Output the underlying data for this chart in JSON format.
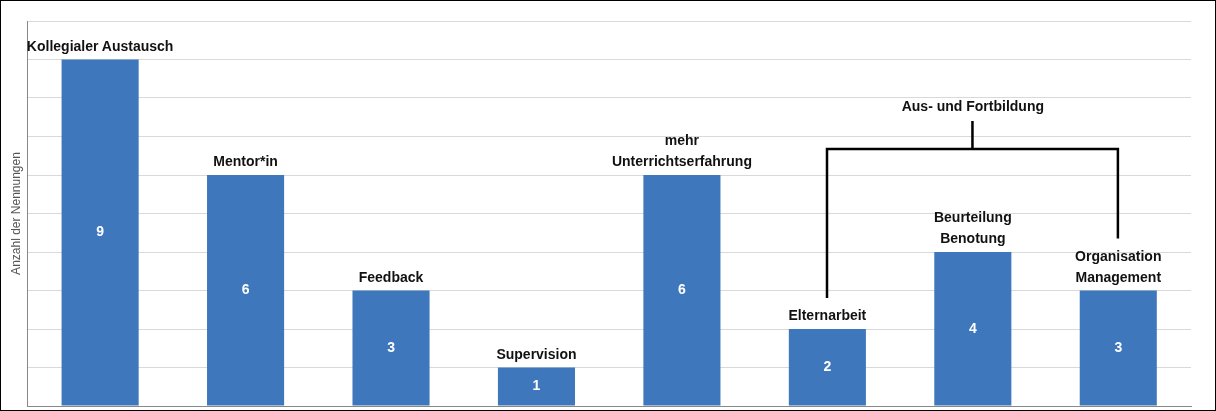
{
  "chart_data": {
    "type": "bar",
    "ylabel": "Anzahl der Nennungen",
    "categories": [
      "Kollegialer Austausch",
      "Mentor*in",
      "Feedback",
      "Supervision",
      "mehr\nUnterrichtserfahrung",
      "Elternarbeit",
      "Beurteilung\nBenotung",
      "Organisation\nManagement"
    ],
    "values": [
      9,
      6,
      3,
      1,
      6,
      2,
      4,
      3
    ],
    "color": "#3f77bc",
    "ylim": [
      0,
      10
    ],
    "yticks": [
      0,
      1,
      2,
      3,
      4,
      5,
      6,
      7,
      8,
      9,
      10
    ],
    "grid": "y",
    "tick_labels": false,
    "data_labels": true,
    "annotations": [
      "Aus- und Fortbildung"
    ]
  }
}
